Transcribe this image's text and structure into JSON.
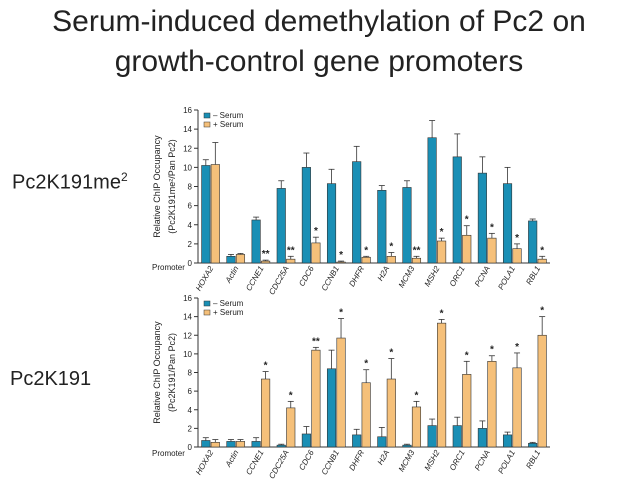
{
  "slide": {
    "title_line1": "Serum-induced demethylation of Pc2 on",
    "title_line2": "growth-control gene promoters",
    "label_top": "Pc2K191me",
    "label_top_sup": "2",
    "label_bottom": "Pc2K191"
  },
  "colors": {
    "minus_serum": "#1a8fb5",
    "plus_serum": "#f5c07a",
    "stroke": "#333333"
  },
  "chart_data": [
    {
      "type": "bar",
      "categories": [
        "HOXA2",
        "Actin",
        "CCNE1",
        "CDC25A",
        "CDC6",
        "CCNB1",
        "DHFR",
        "H2A",
        "MCM3",
        "MSH2",
        "ORC1",
        "PCNA",
        "POLA1",
        "RBL1"
      ],
      "xlabel": "Promoter",
      "ylabel_line1": "Relative ChIP Occupancy",
      "ylabel_line2": "(Pc2K191me²/Pan Pc2)",
      "ylim": [
        0,
        16
      ],
      "yticks": [
        0,
        2,
        4,
        6,
        8,
        10,
        12,
        14,
        16
      ],
      "legend": [
        "– Serum",
        "+ Serum"
      ],
      "legend_position": "top-left",
      "series": [
        {
          "name": "– Serum",
          "values": [
            10.2,
            0.7,
            4.5,
            7.8,
            10.0,
            8.3,
            10.6,
            7.6,
            7.9,
            13.1,
            11.1,
            9.4,
            8.3,
            4.4
          ],
          "errors": [
            0.6,
            0.2,
            0.3,
            0.8,
            1.5,
            1.5,
            1.6,
            0.5,
            0.7,
            1.8,
            2.4,
            1.7,
            1.7,
            0.2
          ]
        },
        {
          "name": "+ Serum",
          "values": [
            10.3,
            0.9,
            0.2,
            0.4,
            2.1,
            0.1,
            0.6,
            0.7,
            0.5,
            2.3,
            2.9,
            2.6,
            1.5,
            0.4
          ],
          "errors": [
            2.3,
            0.1,
            0.1,
            0.3,
            0.6,
            0.1,
            0.1,
            0.4,
            0.2,
            0.3,
            1.0,
            0.5,
            0.5,
            0.3
          ]
        }
      ],
      "annotations": [
        "",
        "",
        "**",
        "**",
        "*",
        "*",
        "*",
        "*",
        "**",
        "*",
        "*",
        "*",
        "*",
        "*"
      ]
    },
    {
      "type": "bar",
      "categories": [
        "HOXA2",
        "Actin",
        "CCNE1",
        "CDC25A",
        "CDC6",
        "CCNB1",
        "DHFR",
        "H2A",
        "MCM3",
        "MSH2",
        "ORC1",
        "PCNA",
        "POLA1",
        "RBL1"
      ],
      "xlabel": "Promoter",
      "ylabel_line1": "Relative ChIP Occupancy",
      "ylabel_line2": "(Pc2K191/Pan Pc2)",
      "ylim": [
        0,
        16
      ],
      "yticks": [
        0,
        2,
        4,
        6,
        8,
        10,
        12,
        14,
        16
      ],
      "legend": [
        "– Serum",
        "+ Serum"
      ],
      "legend_position": "top-left",
      "series": [
        {
          "name": "– Serum",
          "values": [
            0.7,
            0.6,
            0.6,
            0.2,
            1.4,
            8.4,
            1.3,
            1.1,
            0.2,
            2.3,
            2.3,
            2.0,
            1.3,
            0.4
          ],
          "errors": [
            0.3,
            0.2,
            0.4,
            0.1,
            0.8,
            2.0,
            0.6,
            1.0,
            0.1,
            0.7,
            0.9,
            0.8,
            0.3,
            0.1
          ]
        },
        {
          "name": "+ Serum",
          "values": [
            0.5,
            0.6,
            7.3,
            4.2,
            10.4,
            11.7,
            6.9,
            7.3,
            4.3,
            13.3,
            7.8,
            9.2,
            8.5,
            12.0
          ],
          "errors": [
            0.3,
            0.2,
            0.8,
            0.7,
            0.3,
            2.1,
            1.4,
            2.2,
            0.6,
            0.4,
            1.4,
            0.6,
            1.6,
            2.0
          ]
        }
      ],
      "annotations": [
        "",
        "",
        "*",
        "*",
        "**",
        "*",
        "*",
        "*",
        "*",
        "*",
        "*",
        "*",
        "*",
        "*"
      ]
    }
  ]
}
